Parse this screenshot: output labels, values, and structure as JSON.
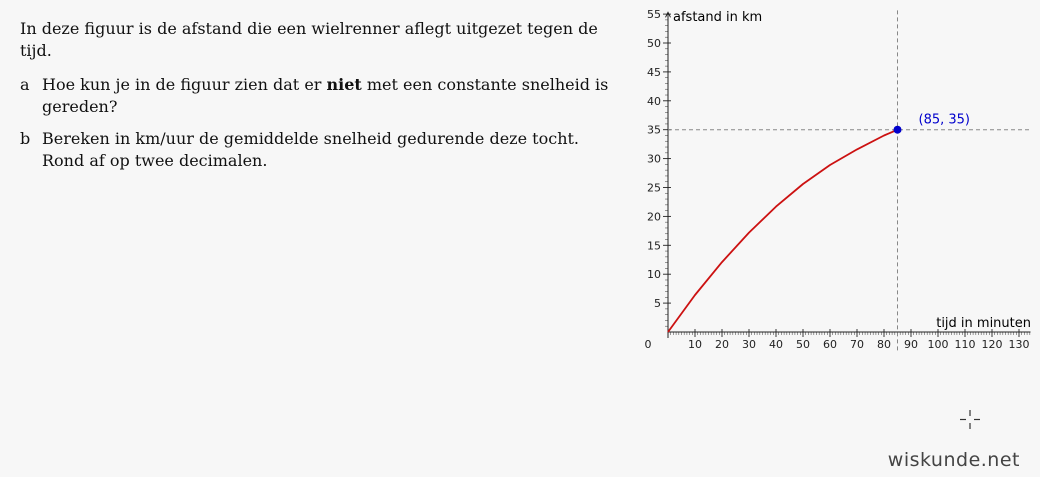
{
  "document": {
    "intro": "In deze figuur is de afstand die een wielrenner aflegt uitgezet tegen de tijd.",
    "questions": [
      {
        "letter": "a",
        "text_before": "Hoe kun je in de figuur zien dat er ",
        "text_bold": "niet",
        "text_after": " met een constante snelheid is gereden?"
      },
      {
        "letter": "b",
        "text": "Bereken in km/uur de gemiddelde snelheid gedurende deze tocht. Rond af op twee decimalen."
      }
    ]
  },
  "chart_data": {
    "type": "line",
    "xlabel": "tijd in minuten",
    "ylabel": "afstand in km",
    "xlim": [
      0,
      135
    ],
    "ylim": [
      0,
      56
    ],
    "x_ticks": [
      0,
      10,
      20,
      30,
      40,
      50,
      60,
      70,
      80,
      90,
      100,
      110,
      120,
      130
    ],
    "y_ticks": [
      5,
      10,
      15,
      20,
      25,
      30,
      35,
      40,
      45,
      50,
      55
    ],
    "series": [
      {
        "color": "#cc1111",
        "x": [
          0,
          10,
          20,
          30,
          40,
          50,
          60,
          70,
          80,
          85
        ],
        "y": [
          0,
          6.4,
          12.1,
          17.2,
          21.7,
          25.6,
          28.9,
          31.6,
          34.0,
          35
        ]
      }
    ],
    "highlight_point": {
      "x": 85,
      "y": 35,
      "label": "(85, 35)",
      "color": "#0000cc"
    },
    "dashed_guides": true
  },
  "watermark": "wiskunde.net"
}
